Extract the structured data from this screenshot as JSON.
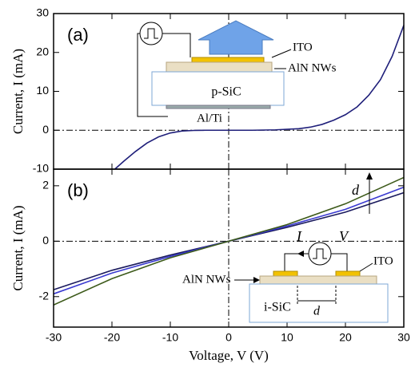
{
  "chart_data": [
    {
      "type": "line",
      "panel_label": "(a)",
      "ylabel": "Current, I (mA)",
      "xlim": [
        -30,
        30
      ],
      "xticks": [
        -30,
        -20,
        -10,
        0,
        10,
        20,
        30
      ],
      "ylim": [
        -10,
        30
      ],
      "yticks": [
        30,
        20,
        10,
        0,
        -10
      ],
      "zero_lines": true,
      "x": [
        -19.5,
        -18,
        -16,
        -14,
        -12,
        -10,
        -8,
        -6,
        -4,
        0,
        4,
        8,
        12,
        14,
        16,
        18,
        20,
        22,
        24,
        26,
        28,
        30
      ],
      "series": [
        {
          "color": "#1f1f7a",
          "values": [
            -10,
            -8,
            -5.5,
            -3.3,
            -1.7,
            -0.7,
            -0.2,
            -0.05,
            0,
            0,
            0,
            0.1,
            0.4,
            0.8,
            1.5,
            2.6,
            4,
            6,
            9,
            13,
            19,
            27
          ]
        }
      ],
      "annotations": {
        "ito": "ITO",
        "aln": "AlN NWs",
        "substrate": "p-SiC",
        "contact": "Al/Ti"
      }
    },
    {
      "type": "line",
      "panel_label": "(b)",
      "ylabel": "Current, I (mA)",
      "xlabel": "Voltage, V (V)",
      "xlim": [
        -30,
        30
      ],
      "xticks": [
        -30,
        -20,
        -10,
        0,
        10,
        20,
        30
      ],
      "ylim": [
        -3.1,
        2.6
      ],
      "yticks": [
        2,
        0,
        -2
      ],
      "zero_lines": true,
      "x": [
        -30,
        -20,
        -10,
        0,
        10,
        20,
        30
      ],
      "series": [
        {
          "color": "#1a1a5e",
          "values": [
            -1.75,
            -1.05,
            -0.5,
            0,
            0.5,
            1.05,
            1.75
          ]
        },
        {
          "color": "#3a3ad0",
          "values": [
            -1.9,
            -1.15,
            -0.55,
            0,
            0.55,
            1.15,
            1.95
          ]
        },
        {
          "color": "#3d5a1a",
          "values": [
            -2.3,
            -1.35,
            -0.6,
            0,
            0.6,
            1.35,
            2.3
          ]
        }
      ],
      "annotations": {
        "gap_arrow": "d",
        "current": "I",
        "voltage": "V",
        "ito": "ITO",
        "aln": "AlN NWs",
        "substrate": "i-SiC",
        "gap": "d"
      }
    }
  ]
}
